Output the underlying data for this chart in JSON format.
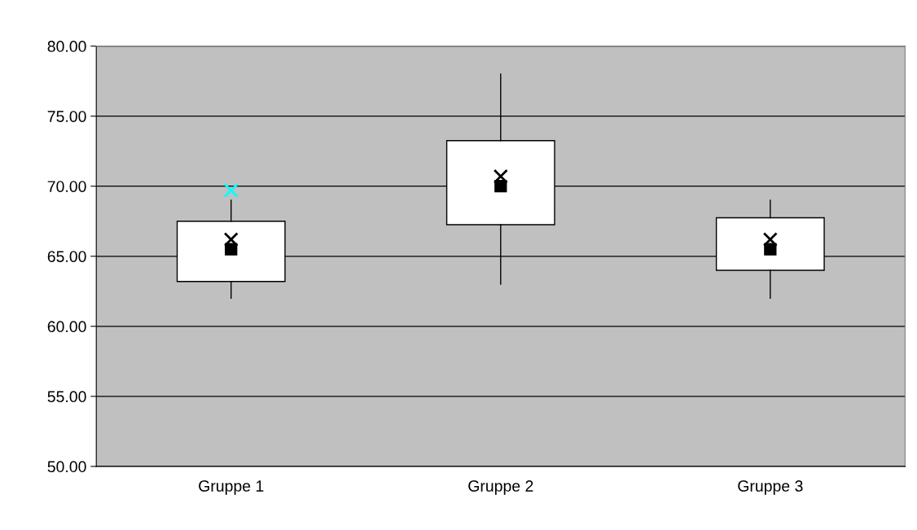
{
  "chart_data": {
    "type": "box",
    "categories": [
      "Gruppe 1",
      "Gruppe 2",
      "Gruppe 3"
    ],
    "boxes": [
      {
        "low": 62.0,
        "q1": 63.2,
        "median": 65.5,
        "q3": 67.5,
        "high": 69.0,
        "mean": 66.2,
        "outliers": [
          69.7
        ]
      },
      {
        "low": 63.0,
        "q1": 67.25,
        "median": 70.0,
        "q3": 73.25,
        "high": 78.0,
        "mean": 70.7
      },
      {
        "low": 62.0,
        "q1": 64.0,
        "median": 65.5,
        "q3": 67.75,
        "high": 69.0,
        "mean": 66.2
      }
    ],
    "ylim": [
      50,
      80
    ],
    "yticks": [
      {
        "value": 50,
        "label": "50.00"
      },
      {
        "value": 55,
        "label": "55.00"
      },
      {
        "value": 60,
        "label": "60.00"
      },
      {
        "value": 65,
        "label": "65.00"
      },
      {
        "value": 70,
        "label": "70.00"
      },
      {
        "value": 75,
        "label": "75.00"
      },
      {
        "value": 80,
        "label": "80.00"
      }
    ],
    "grid": "y"
  }
}
